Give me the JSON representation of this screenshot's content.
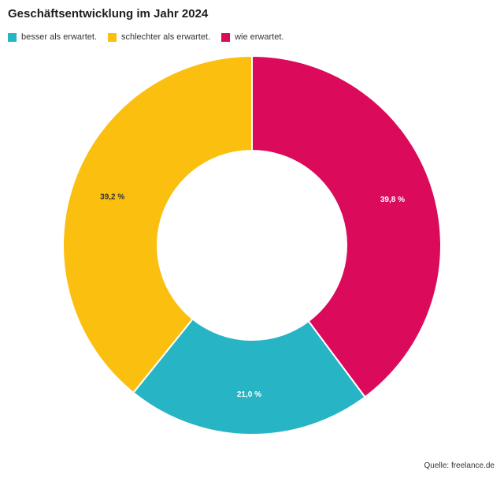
{
  "title": "Geschäftsentwicklung im Jahr 2024",
  "source": "Quelle: freelance.de",
  "chart_data": {
    "type": "pie",
    "variant": "donut",
    "title": "Geschäftsentwicklung im Jahr 2024",
    "legend_position": "top-left",
    "series": [
      {
        "name": "besser als erwartet.",
        "value": 21.0,
        "label": "21,0 %",
        "color": "#27B4C4",
        "label_color": "#ffffff"
      },
      {
        "name": "schlechter als erwartet.",
        "value": 39.2,
        "label": "39,2 %",
        "color": "#FBBF10",
        "label_color": "#333333"
      },
      {
        "name": "wie erwartet.",
        "value": 39.8,
        "label": "39,8 %",
        "color": "#DB0A5A",
        "label_color": "#ffffff"
      }
    ]
  }
}
